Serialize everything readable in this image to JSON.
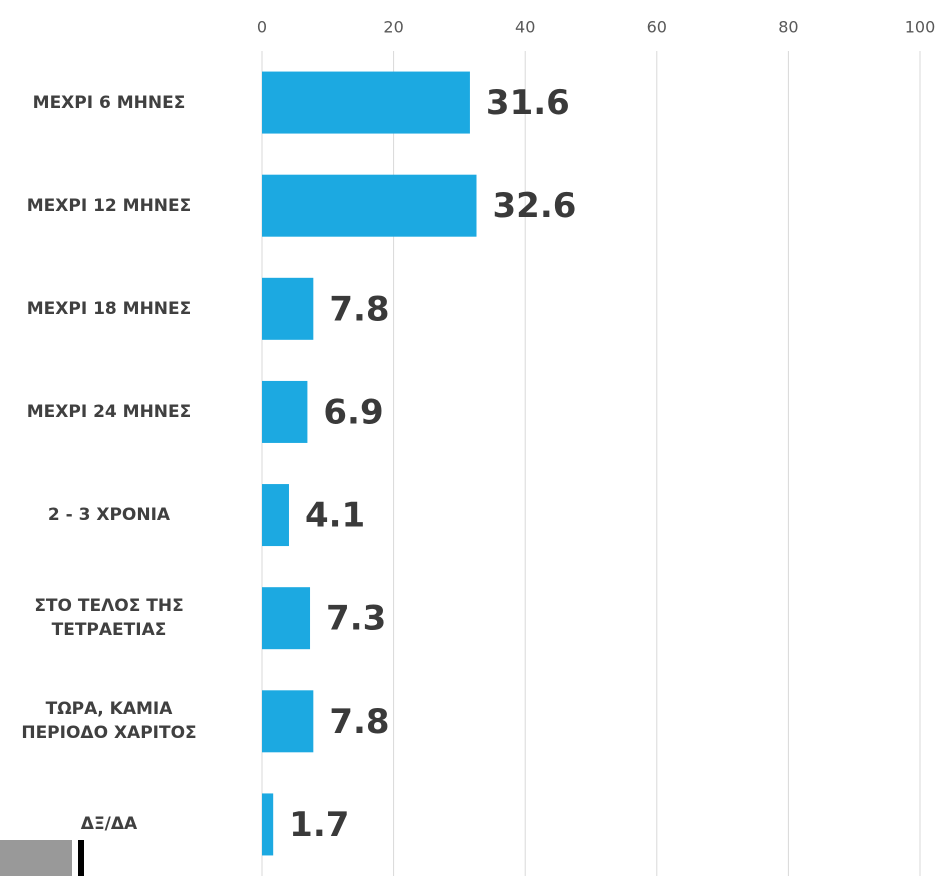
{
  "chart_data": {
    "type": "bar",
    "orientation": "horizontal",
    "categories": [
      "ΜΕΧΡΙ 6 ΜΗΝΕΣ",
      "ΜΕΧΡΙ 12 ΜΗΝΕΣ",
      "ΜΕΧΡΙ 18 ΜΗΝΕΣ",
      "ΜΕΧΡΙ 24 ΜΗΝΕΣ",
      "2 - 3 ΧΡΟΝΙΑ",
      "ΣΤΟ ΤΕΛΟΣ ΤΗΣ\nΤΕΤΡΑΕΤΙΑΣ",
      "ΤΩΡΑ, ΚΑΜΙΑ\nΠΕΡΙΟΔΟ ΧΑΡΙΤΟΣ",
      "ΔΞ/ΔΑ"
    ],
    "values": [
      31.6,
      32.6,
      7.8,
      6.9,
      4.1,
      7.3,
      7.8,
      1.7
    ],
    "color": "#1ca9e1",
    "xlim": [
      0,
      100
    ],
    "xticks": [
      0,
      20,
      40,
      60,
      80,
      100
    ],
    "grid": true
  }
}
